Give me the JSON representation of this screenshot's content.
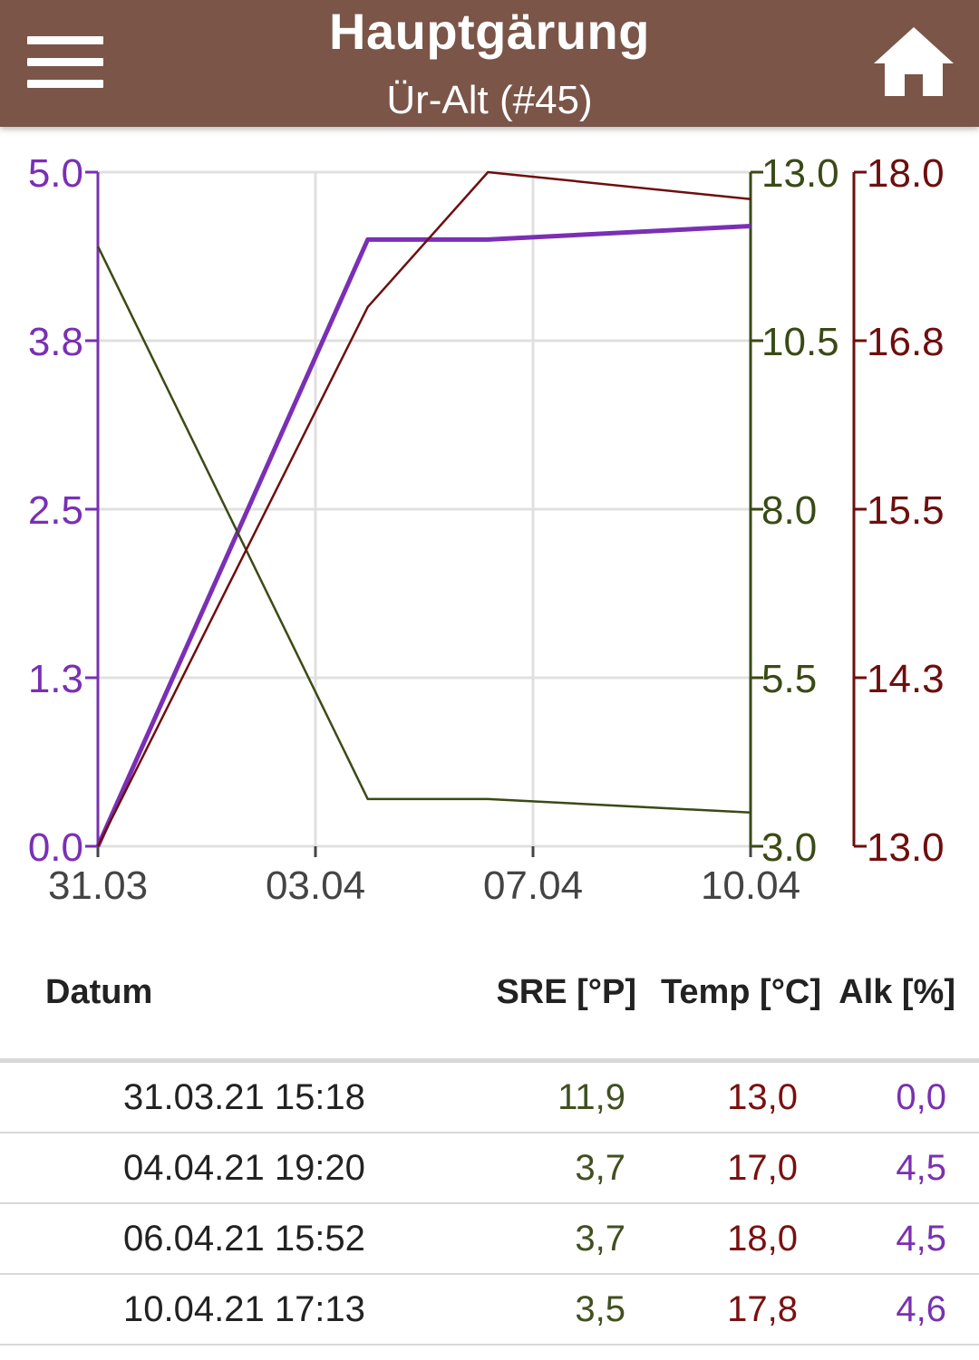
{
  "appbar": {
    "title": "Hauptgärung",
    "subtitle": "Ür-Alt (#45)",
    "menu_icon": "hamburger-menu-icon",
    "home_icon": "home-icon"
  },
  "colors": {
    "appbar": "#7a5548",
    "alk": "#7a2fb5",
    "sre": "#3a4a15",
    "temp": "#6e0e0e",
    "grid": "#e0e0e0"
  },
  "chart_data": {
    "type": "line",
    "x": [
      "2021-03-31 15:18",
      "2021-04-04 19:20",
      "2021-04-06 15:52",
      "2021-04-10 17:13"
    ],
    "x_ticks": [
      "31.03",
      "03.04",
      "07.04",
      "10.04"
    ],
    "grid": true,
    "series": [
      {
        "key": "alk",
        "values": [
          0.0,
          4.5,
          4.5,
          4.6
        ],
        "axis": "left"
      },
      {
        "key": "sre",
        "values": [
          11.9,
          3.7,
          3.7,
          3.5
        ],
        "axis": "right1"
      },
      {
        "key": "temp",
        "values": [
          13.0,
          17.0,
          18.0,
          17.8
        ],
        "axis": "right2"
      }
    ],
    "axes": {
      "left": {
        "min": 0,
        "max": 5,
        "ticks": [
          "0.0",
          "1.3",
          "2.5",
          "3.8",
          "5.0"
        ]
      },
      "right1": {
        "min": 3,
        "max": 13,
        "ticks": [
          "3.0",
          "5.5",
          "8.0",
          "10.5",
          "13.0"
        ]
      },
      "right2": {
        "min": 13,
        "max": 18,
        "ticks": [
          "13.0",
          "14.3",
          "15.5",
          "16.8",
          "18.0"
        ]
      }
    }
  },
  "table": {
    "headers": {
      "date": "Datum",
      "sre": "SRE [°P]",
      "temp": "Temp [°C]",
      "alk": "Alk [%]"
    },
    "rows": [
      {
        "date": "31.03.21 15:18",
        "sre": "11,9",
        "temp": "13,0",
        "alk": "0,0"
      },
      {
        "date": "04.04.21 19:20",
        "sre": "3,7",
        "temp": "17,0",
        "alk": "4,5"
      },
      {
        "date": "06.04.21 15:52",
        "sre": "3,7",
        "temp": "18,0",
        "alk": "4,5"
      },
      {
        "date": "10.04.21 17:13",
        "sre": "3,5",
        "temp": "17,8",
        "alk": "4,6"
      }
    ]
  }
}
